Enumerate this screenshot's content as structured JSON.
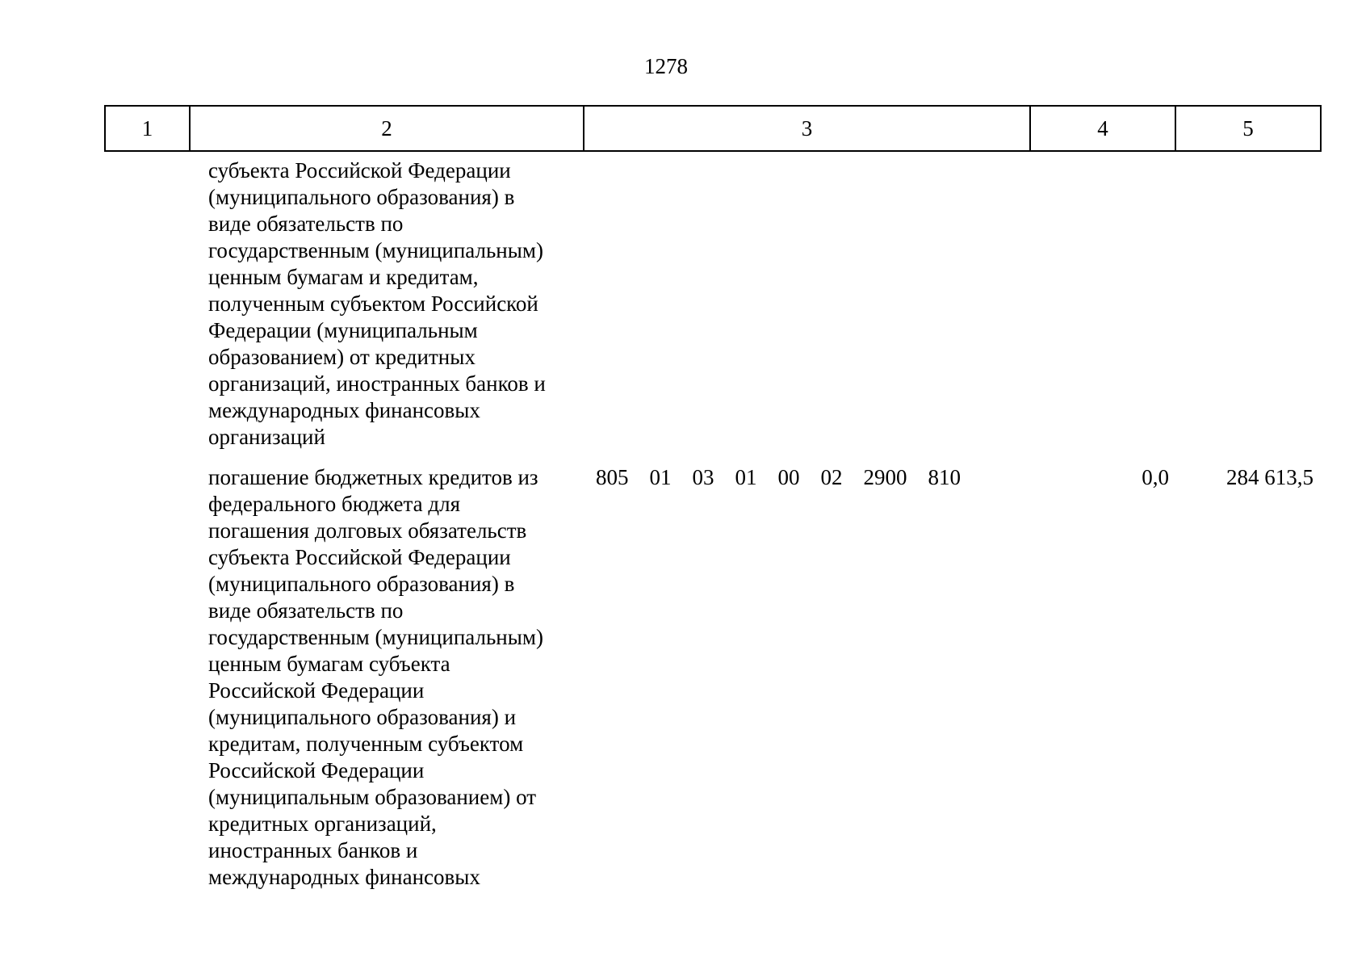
{
  "page_number": "1278",
  "table": {
    "column_headers": [
      "1",
      "2",
      "3",
      "4",
      "5"
    ],
    "rows": [
      {
        "text": "субъекта Российской Федерации\n(муниципального образования) в\nвиде обязательств по\nгосударственным (муниципальным)\nценным бумагам и кредитам,\nполученным субъектом Российской\nФедерации (муниципальным\nобразованием) от кредитных\nорганизаций, иностранных банков и\nмеждународных финансовых\nорганизаций"
      },
      {
        "text": "погашение бюджетных кредитов из\nфедерального бюджета для\nпогашения долговых обязательств\nсубъекта Российской Федерации\n(муниципального образования) в\nвиде обязательств по\nгосударственным (муниципальным)\nценным бумагам субъекта\nРоссийской Федерации\n(муниципального образования) и\nкредитам, полученным субъектом\nРоссийской Федерации\n(муниципальным образованием) от\nкредитных организаций,\nиностранных банков и\nмеждународных финансовых",
        "codes": [
          "805",
          "01",
          "03",
          "01",
          "00",
          "02",
          "2900",
          "810"
        ],
        "col4_value": "0,0",
        "col5_value": "284 613,5"
      }
    ]
  }
}
